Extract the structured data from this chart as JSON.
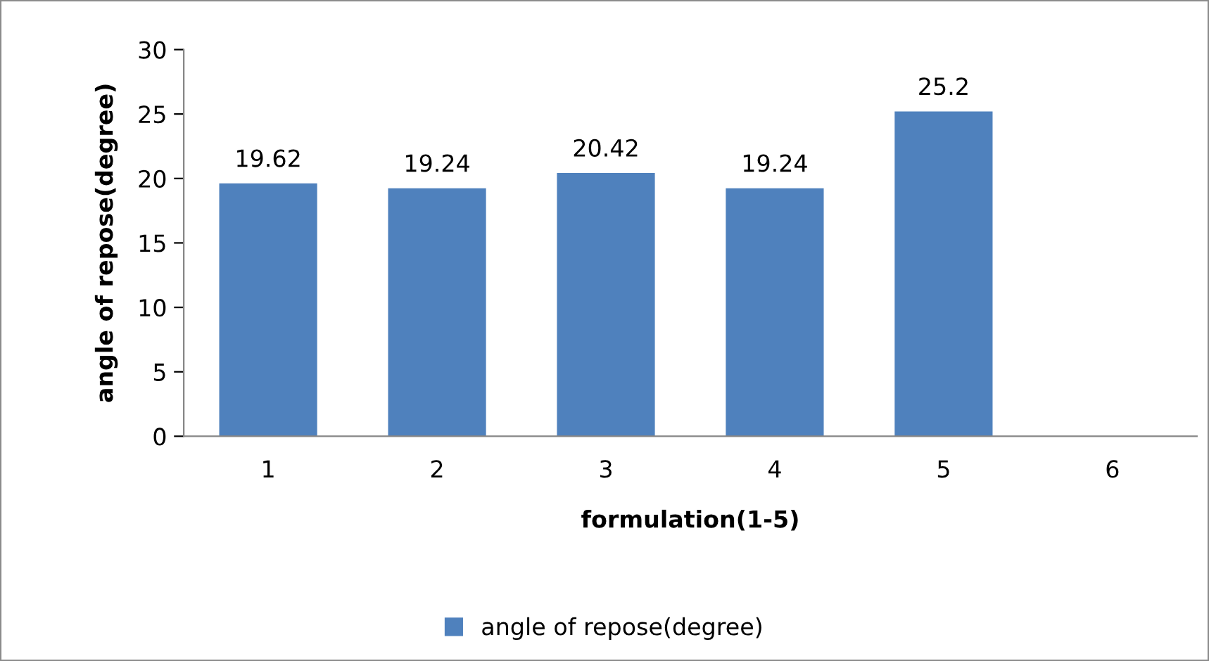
{
  "chart_data": {
    "type": "bar",
    "xlabel": "formulation(1-5)",
    "ylabel": "angle of repose(degree)",
    "categories": [
      "1",
      "2",
      "3",
      "4",
      "5",
      "6"
    ],
    "series": [
      {
        "name": "angle of repose(degree)",
        "color": "#4f81bd",
        "values": [
          19.62,
          19.24,
          20.42,
          19.24,
          25.2,
          null
        ]
      }
    ],
    "ylim": [
      0,
      30
    ],
    "yticks": [
      0,
      5,
      10,
      15,
      20,
      25,
      30
    ],
    "data_labels": true,
    "grid": false,
    "legend": "bottom"
  }
}
